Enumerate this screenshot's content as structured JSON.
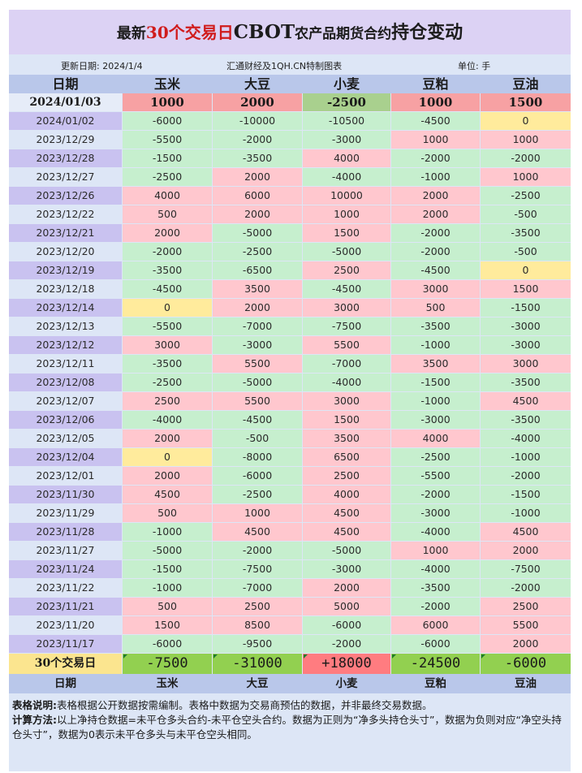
{
  "title": {
    "part1": "最新",
    "part2": "30个交易日",
    "part3": "CBOT",
    "part4": "农产品期货合约",
    "part5": "持仓变动"
  },
  "meta": {
    "update_date": "更新日期: 2024/1/4",
    "producer": "汇通财经及1QH.CN特制图表",
    "unit": "单位: 手"
  },
  "columns": [
    "日期",
    "玉米",
    "大豆",
    "小麦",
    "豆粕",
    "豆油"
  ],
  "colors": {
    "positive": "#ffc7ce",
    "negative": "#c6efce",
    "zero": "#ffeb9c",
    "latest_positive": "#f7a1a3",
    "latest_negative": "#a9d08e",
    "sum_negative": "#92d050",
    "sum_positive": "#ff7c80",
    "date_band": "#c9c2f0"
  },
  "latest": {
    "date": "2024/01/03",
    "values": [
      "1000",
      "2000",
      "-2500",
      "1000",
      "1500"
    ]
  },
  "rows": [
    {
      "date": "2024/01/02",
      "values": [
        "-6000",
        "-10000",
        "-10500",
        "-4500",
        "0"
      ]
    },
    {
      "date": "2023/12/29",
      "values": [
        "-5500",
        "-2000",
        "-3000",
        "1000",
        "1000"
      ]
    },
    {
      "date": "2023/12/28",
      "values": [
        "-1500",
        "-3500",
        "4000",
        "-2000",
        "-2000"
      ]
    },
    {
      "date": "2023/12/27",
      "values": [
        "-2500",
        "2000",
        "-4000",
        "-1000",
        "1000"
      ]
    },
    {
      "date": "2023/12/26",
      "values": [
        "4000",
        "6000",
        "10000",
        "2000",
        "-2500"
      ]
    },
    {
      "date": "2023/12/22",
      "values": [
        "500",
        "2000",
        "1000",
        "2000",
        "-500"
      ]
    },
    {
      "date": "2023/12/21",
      "values": [
        "2000",
        "-5000",
        "1500",
        "-2000",
        "-3500"
      ]
    },
    {
      "date": "2023/12/20",
      "values": [
        "-2000",
        "-2500",
        "-5000",
        "-2000",
        "-500"
      ]
    },
    {
      "date": "2023/12/19",
      "values": [
        "-3500",
        "-6500",
        "2500",
        "-4500",
        "0"
      ]
    },
    {
      "date": "2023/12/18",
      "values": [
        "-4500",
        "3500",
        "-4500",
        "3000",
        "1500"
      ]
    },
    {
      "date": "2023/12/14",
      "values": [
        "0",
        "2000",
        "3000",
        "500",
        "-1500"
      ]
    },
    {
      "date": "2023/12/13",
      "values": [
        "-5500",
        "-7000",
        "-7500",
        "-3500",
        "-3000"
      ]
    },
    {
      "date": "2023/12/12",
      "values": [
        "3000",
        "-3000",
        "5500",
        "-1000",
        "-3000"
      ]
    },
    {
      "date": "2023/12/11",
      "values": [
        "-3500",
        "5500",
        "-7000",
        "3500",
        "3000"
      ]
    },
    {
      "date": "2023/12/08",
      "values": [
        "-2500",
        "-5000",
        "-4000",
        "-1500",
        "-3500"
      ]
    },
    {
      "date": "2023/12/07",
      "values": [
        "2500",
        "5500",
        "3000",
        "-1000",
        "4500"
      ]
    },
    {
      "date": "2023/12/06",
      "values": [
        "-4000",
        "-4500",
        "1500",
        "-3000",
        "-3500"
      ]
    },
    {
      "date": "2023/12/05",
      "values": [
        "2000",
        "-500",
        "3500",
        "4000",
        "-4000"
      ]
    },
    {
      "date": "2023/12/04",
      "values": [
        "0",
        "-8000",
        "6500",
        "-2500",
        "-1000"
      ]
    },
    {
      "date": "2023/12/01",
      "values": [
        "2000",
        "-6000",
        "2500",
        "-5500",
        "-2000"
      ]
    },
    {
      "date": "2023/11/30",
      "values": [
        "4500",
        "-2500",
        "4000",
        "-2000",
        "-1500"
      ]
    },
    {
      "date": "2023/11/29",
      "values": [
        "500",
        "1000",
        "4500",
        "-3000",
        "-1000"
      ]
    },
    {
      "date": "2023/11/28",
      "values": [
        "-1000",
        "4500",
        "4500",
        "-4000",
        "4500"
      ]
    },
    {
      "date": "2023/11/27",
      "values": [
        "-5000",
        "-2000",
        "-5000",
        "1000",
        "2000"
      ]
    },
    {
      "date": "2023/11/24",
      "values": [
        "-1500",
        "-7500",
        "-3000",
        "-4000",
        "-7500"
      ]
    },
    {
      "date": "2023/11/22",
      "values": [
        "-1000",
        "-7000",
        "2000",
        "-3500",
        "-2000"
      ]
    },
    {
      "date": "2023/11/21",
      "values": [
        "500",
        "2500",
        "5000",
        "-2000",
        "2500"
      ]
    },
    {
      "date": "2023/11/20",
      "values": [
        "1500",
        "8500",
        "-6000",
        "6000",
        "5500"
      ]
    },
    {
      "date": "2023/11/17",
      "values": [
        "-6000",
        "-9500",
        "-2000",
        "-6000",
        "2000"
      ]
    }
  ],
  "summary": {
    "label": "30个交易日",
    "values": [
      "-7500",
      "-31000",
      "+18000",
      "-24500",
      "-6000"
    ]
  },
  "footer_columns": [
    "日期",
    "玉米",
    "大豆",
    "小麦",
    "豆粕",
    "豆油"
  ],
  "notes": {
    "label1": "表格说明:",
    "text1": "表格根据公开数据按需编制。表格中数据为交易商预估的数据，并非最终交易数据。",
    "label2": "计算方法:",
    "text2": "以上净持仓数据=未平仓多头合约-未平仓空头合约。数据为正则为“净多头持仓头寸”，数据为负则对应“净空头持仓头寸”，数据为0表示未平仓多头与未平仓空头相同。"
  }
}
